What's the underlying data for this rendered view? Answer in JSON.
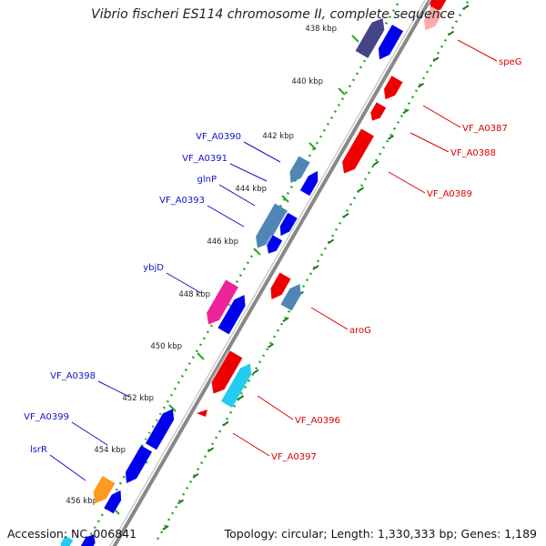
{
  "title": "Vibrio fischeri ES114 chromosome II, complete sequence",
  "accession": "Accession: NC_006841",
  "summary": "Topology: circular; Length: 1,330,333 bp; Genes: 1,189",
  "ticks": [
    "438 kbp",
    "440 kbp",
    "442 kbp",
    "444 kbp",
    "446 kbp",
    "448 kbp",
    "450 kbp",
    "452 kbp",
    "454 kbp",
    "456 kbp"
  ],
  "left_labels": [
    "VF_A0390",
    "VF_A0391",
    "glnP",
    "VF_A0393",
    "ybjD",
    "VF_A0398",
    "VF_A0399",
    "lsrR"
  ],
  "right_labels": [
    "speG",
    "VF_A0387",
    "VF_A0388",
    "VF_A0389",
    "aroG",
    "VF_A0396",
    "VF_A0397"
  ],
  "colors": {
    "forward": "#0000ee",
    "reverse": "#ee0000",
    "steelblue": "#4f86b5",
    "cyan": "#22ccee",
    "magenta": "#ee2299",
    "orange": "#ff9922",
    "purple": "#444488",
    "pink": "#ffaaaa",
    "backbone": "#888888",
    "ruler": "#22aa22",
    "label_left": "#1111cc",
    "label_right": "#dd0000"
  }
}
